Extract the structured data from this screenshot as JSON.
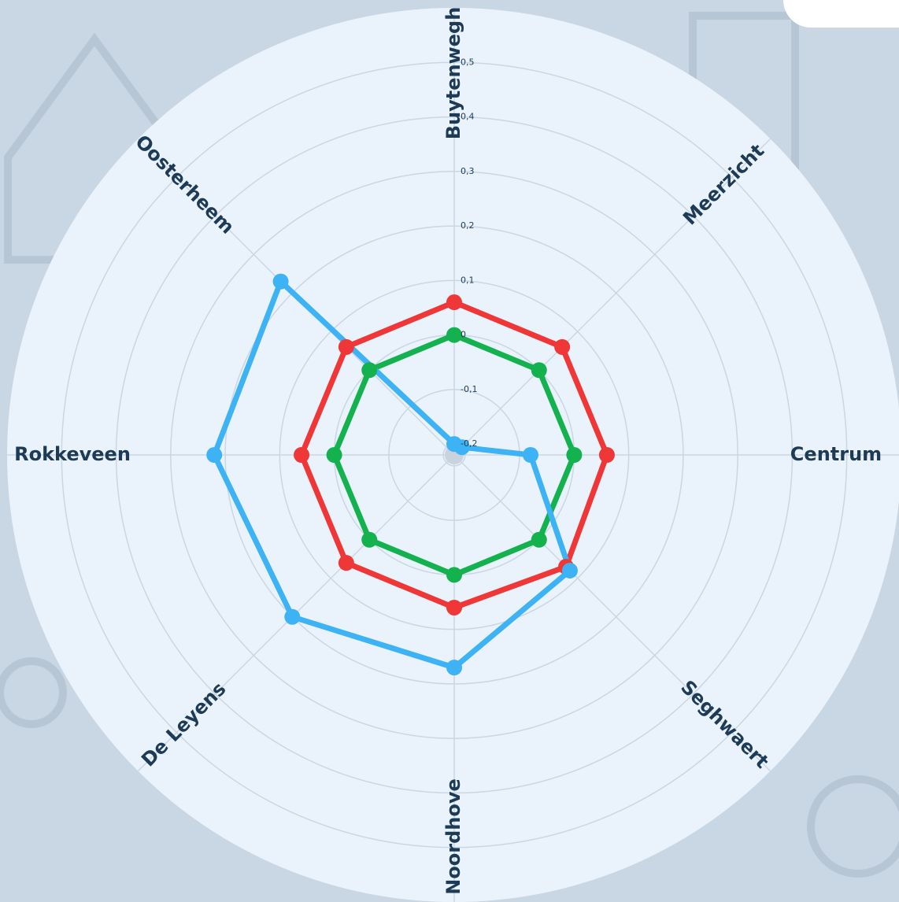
{
  "chart_data": {
    "type": "radar",
    "categories": [
      "Buytenwegh",
      "Meerzicht",
      "Centrum",
      "Seghwaert",
      "Noordhove",
      "De Leyens",
      "Rokkeveen",
      "Oosterheem"
    ],
    "series": [
      {
        "color": "#f03737",
        "values": [
          0.06,
          0.06,
          0.06,
          0.07,
          0.06,
          0.06,
          0.06,
          0.06
        ]
      },
      {
        "color": "#13b24f",
        "values": [
          0,
          0,
          0,
          0,
          0,
          0,
          0,
          0
        ]
      },
      {
        "color": "#3db3f5",
        "values": [
          -0.2,
          -0.2,
          -0.08,
          0.08,
          0.17,
          0.2,
          0.22,
          0.23
        ]
      }
    ],
    "rlim": [
      -0.22,
      0.6
    ],
    "rticks": [
      {
        "value": -0.2,
        "label": "-0,2"
      },
      {
        "value": -0.1,
        "label": "-0,1"
      },
      0,
      {
        "value": 0.1,
        "label": "0,1"
      },
      {
        "value": 0.2,
        "label": "0,2"
      },
      {
        "value": 0.3,
        "label": "0,3"
      },
      {
        "value": 0.4,
        "label": "0,4"
      },
      {
        "value": 0.5,
        "label": "0,5"
      }
    ],
    "grid": true
  }
}
